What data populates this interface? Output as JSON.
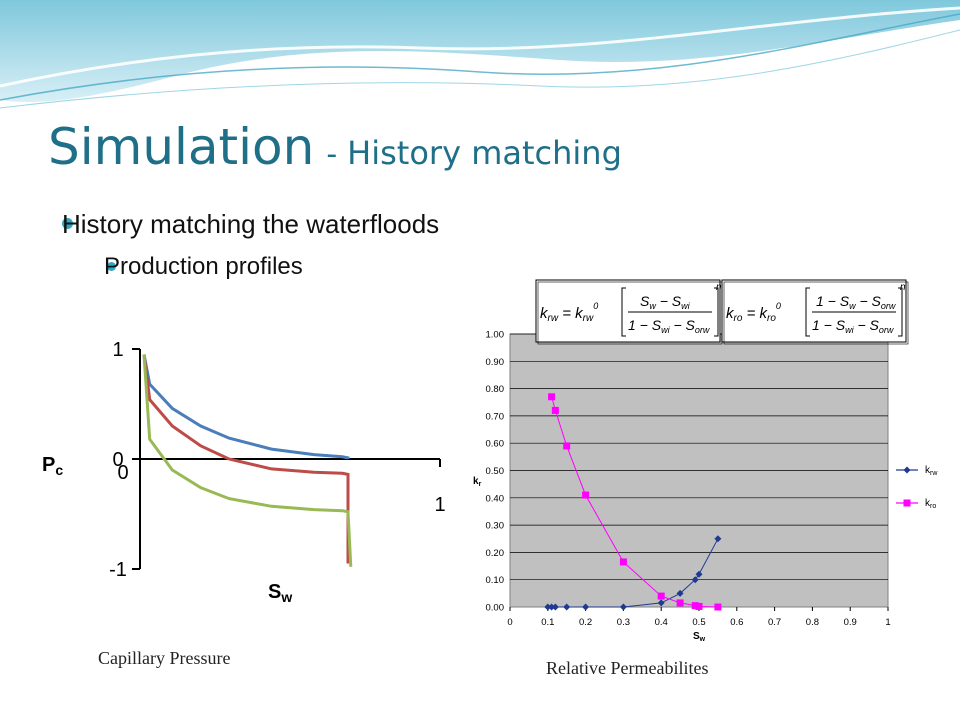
{
  "slide": {
    "title": "Simulation",
    "title_separator": "-",
    "subtitle": "History matching",
    "bullets": [
      {
        "text": "History matching the waterfloods"
      },
      {
        "text": "Production profiles"
      }
    ],
    "colors": {
      "title": "#1f6f88",
      "bullet": "#2ea7c4",
      "banner": "#7fc8dc"
    }
  },
  "captions": {
    "left": "Capillary Pressure",
    "right": "Relative Permeabilites"
  },
  "formulas": {
    "krw": "k_rw = k_rw^0 [ (S_w − S_wi) / (1 − S_wi − S_orw) ]^n",
    "kro": "k_ro = k_ro^0 [ (1 − S_w − S_orw) / (1 − S_wi − S_orw) ]^n"
  },
  "chart_data": [
    {
      "type": "line",
      "ylabel": "Pc",
      "xlabel": "Sw",
      "xlim": [
        0,
        1
      ],
      "ylim": [
        -1,
        1
      ],
      "ytick_labels": [
        "1",
        "0",
        "-1"
      ],
      "xtick_labels": [
        "0",
        "1"
      ],
      "grid": false,
      "series": [
        {
          "color": "#4a7ebb",
          "x": [
            0.0,
            0.02,
            0.1,
            0.2,
            0.3,
            0.45,
            0.6,
            0.7,
            0.72,
            0.72
          ],
          "y": [
            0.95,
            0.68,
            0.46,
            0.3,
            0.19,
            0.09,
            0.04,
            0.02,
            0.01,
            0.0
          ]
        },
        {
          "color": "#be4b48",
          "x": [
            0.0,
            0.02,
            0.1,
            0.2,
            0.3,
            0.45,
            0.6,
            0.7,
            0.72,
            0.72
          ],
          "y": [
            0.95,
            0.54,
            0.3,
            0.12,
            0.0,
            -0.09,
            -0.12,
            -0.13,
            -0.14,
            -0.95
          ]
        },
        {
          "color": "#98b954",
          "x": [
            0.0,
            0.02,
            0.1,
            0.2,
            0.3,
            0.45,
            0.6,
            0.7,
            0.72,
            0.73
          ],
          "y": [
            0.95,
            0.18,
            -0.1,
            -0.26,
            -0.36,
            -0.43,
            -0.46,
            -0.47,
            -0.48,
            -0.98
          ]
        }
      ]
    },
    {
      "type": "line",
      "xlabel": "Sw",
      "ylabel": "kr",
      "xlim": [
        0,
        1
      ],
      "ylim": [
        0,
        1
      ],
      "xticks": [
        "0",
        "0.1",
        "0.2",
        "0.3",
        "0.4",
        "0.5",
        "0.6",
        "0.7",
        "0.8",
        "0.9",
        "1"
      ],
      "yticks": [
        "0.00",
        "0.10",
        "0.20",
        "0.30",
        "0.40",
        "0.50",
        "0.60",
        "0.70",
        "0.80",
        "0.90",
        "1.00"
      ],
      "grid": true,
      "legend_position": "right",
      "series": [
        {
          "name": "krw",
          "color": "#1f3a93",
          "marker": "diamond",
          "x": [
            0.1,
            0.11,
            0.12,
            0.15,
            0.2,
            0.3,
            0.4,
            0.45,
            0.49,
            0.5,
            0.55
          ],
          "y": [
            0.0,
            0.0,
            0.0,
            0.0,
            0.0,
            0.0,
            0.015,
            0.05,
            0.1,
            0.12,
            0.25
          ]
        },
        {
          "name": "kro",
          "color": "#ff00ff",
          "marker": "square",
          "x": [
            0.11,
            0.12,
            0.15,
            0.2,
            0.3,
            0.4,
            0.45,
            0.49,
            0.5,
            0.55
          ],
          "y": [
            0.77,
            0.72,
            0.59,
            0.41,
            0.165,
            0.04,
            0.015,
            0.005,
            0.002,
            0.0
          ]
        }
      ]
    }
  ]
}
